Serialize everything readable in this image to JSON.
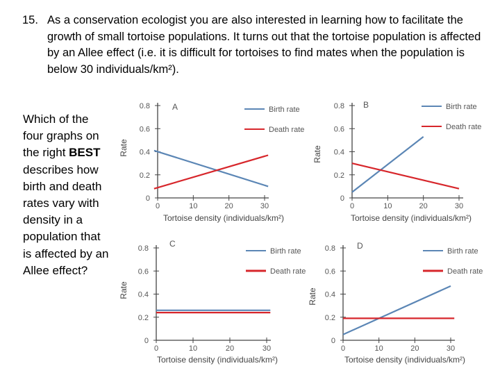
{
  "question": {
    "number": "15.",
    "text": "As a conservation ecologist you are also interested in learning how to facilitate the growth of small tortoise populations. It turns out that the tortoise population is affected by an Allee effect (i.e. it is difficult for tortoises to find mates when the population is below 30 individuals/km²)."
  },
  "prompt": {
    "before": "Which of the four graphs on the right ",
    "bold": "BEST",
    "after": " describes how birth and death rates vary with density in a population that is affected by an Allee effect?"
  },
  "colors": {
    "birth": "#5b86b5",
    "death": "#d7262b",
    "axis": "#444444"
  },
  "chart_data": [
    {
      "type": "line",
      "panel": "A",
      "xlabel": "Tortoise density (individuals/km²)",
      "ylabel": "Rate",
      "xticks": [
        "0",
        "10",
        "20",
        "30"
      ],
      "yticks": [
        "0",
        "0.2",
        "0.4",
        "0.6",
        "0.8"
      ],
      "xlim": [
        0,
        30
      ],
      "ylim": [
        0,
        0.8
      ],
      "series": [
        {
          "name": "Birth rate",
          "x": [
            -1,
            31
          ],
          "y": [
            0.41,
            0.1
          ]
        },
        {
          "name": "Death rate",
          "x": [
            -1,
            31
          ],
          "y": [
            0.08,
            0.37
          ]
        }
      ]
    },
    {
      "type": "line",
      "panel": "B",
      "xlabel": "Tortoise density (individuals/km²)",
      "ylabel": "Rate",
      "xticks": [
        "0",
        "10",
        "20",
        "30"
      ],
      "yticks": [
        "0",
        "0.2",
        "0.4",
        "0.6",
        "0.8"
      ],
      "xlim": [
        0,
        30
      ],
      "ylim": [
        0,
        0.8
      ],
      "series": [
        {
          "name": "Birth rate",
          "x": [
            0,
            20
          ],
          "y": [
            0.05,
            0.53
          ]
        },
        {
          "name": "Death rate",
          "x": [
            0,
            30
          ],
          "y": [
            0.3,
            0.08
          ]
        }
      ]
    },
    {
      "type": "line",
      "panel": "C",
      "xlabel": "Tortoise density (individuals/km²)",
      "ylabel": "Rate",
      "xticks": [
        "0",
        "10",
        "20",
        "30"
      ],
      "yticks": [
        "0",
        "0.2",
        "0.4",
        "0.6",
        "0.8"
      ],
      "xlim": [
        0,
        30
      ],
      "ylim": [
        0,
        0.8
      ],
      "series": [
        {
          "name": "Birth rate",
          "x": [
            0,
            31
          ],
          "y": [
            0.26,
            0.26
          ]
        },
        {
          "name": "Death rate",
          "x": [
            0,
            31
          ],
          "y": [
            0.24,
            0.24
          ]
        }
      ]
    },
    {
      "type": "line",
      "panel": "D",
      "xlabel": "Tortoise density (individuals/km²)",
      "ylabel": "Rate",
      "xticks": [
        "0",
        "10",
        "20",
        "30"
      ],
      "yticks": [
        "0",
        "0.2",
        "0.4",
        "0.6",
        "0.8"
      ],
      "xlim": [
        0,
        30
      ],
      "ylim": [
        0,
        0.8
      ],
      "series": [
        {
          "name": "Birth rate",
          "x": [
            0,
            30
          ],
          "y": [
            0.05,
            0.47
          ]
        },
        {
          "name": "Death rate",
          "x": [
            0,
            31
          ],
          "y": [
            0.19,
            0.19
          ]
        }
      ]
    }
  ]
}
